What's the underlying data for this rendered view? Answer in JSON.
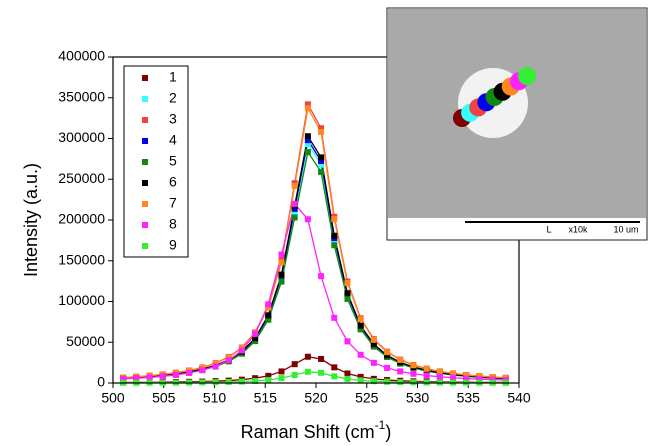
{
  "chart_data": {
    "type": "scatter",
    "x_label": {
      "text": "Raman Shift (cm",
      "superscript": "-1",
      "end": ")"
    },
    "y_label": "Intensity (a.u.)",
    "xlim": [
      500,
      540
    ],
    "xticks": [
      500,
      505,
      510,
      515,
      520,
      525,
      530,
      535,
      540
    ],
    "ylim": [
      0,
      400000
    ],
    "yticks": [
      0,
      50000,
      100000,
      150000,
      200000,
      250000,
      300000,
      350000,
      400000
    ],
    "legend": "upper left",
    "x": [
      501,
      502.3,
      503.6,
      504.9,
      506.2,
      507.5,
      508.8,
      510.1,
      511.4,
      512.7,
      514,
      515.3,
      516.6,
      517.9,
      519.2,
      520.5,
      521.8,
      523.1,
      524.4,
      525.7,
      527,
      528.3,
      529.6,
      530.9,
      532.2,
      533.5,
      534.8,
      536.1,
      537.4,
      538.7
    ],
    "series": [
      {
        "name": "1",
        "color": "#7f0000",
        "values": [
          600,
          700,
          800,
          1000,
          1200,
          1500,
          1800,
          2300,
          3000,
          4100,
          5900,
          8800,
          14200,
          23100,
          32200,
          29500,
          19200,
          11700,
          7500,
          5100,
          3600,
          2700,
          2100,
          1700,
          1300,
          1100,
          900,
          800,
          700,
          600
        ]
      },
      {
        "name": "2",
        "color": "#33ffff",
        "values": [
          5800,
          6600,
          7700,
          9100,
          10900,
          13200,
          16400,
          20900,
          27400,
          37300,
          53200,
          80300,
          128700,
          210200,
          293100,
          267900,
          174800,
          106700,
          68100,
          46100,
          33000,
          24600,
          19000,
          15100,
          12200,
          10100,
          8500,
          7300,
          6300,
          5500
        ]
      },
      {
        "name": "3",
        "color": "#ee4444",
        "values": [
          6700,
          7700,
          9000,
          10600,
          12700,
          15400,
          19200,
          24400,
          32000,
          43500,
          62100,
          93700,
          150200,
          245200,
          341900,
          312600,
          204000,
          124500,
          79400,
          53800,
          38500,
          28700,
          22200,
          17600,
          14300,
          11800,
          9900,
          8500,
          7300,
          6400
        ]
      },
      {
        "name": "4",
        "color": "#0000ee",
        "values": [
          5900,
          6700,
          7800,
          9200,
          11100,
          13500,
          16700,
          21300,
          27800,
          37900,
          54100,
          81600,
          130800,
          213700,
          298000,
          272400,
          177800,
          108500,
          69200,
          46900,
          33500,
          25000,
          19300,
          15300,
          12400,
          10300,
          8700,
          7400,
          6400,
          5600
        ]
      },
      {
        "name": "5",
        "color": "#118811",
        "values": [
          5600,
          6400,
          7500,
          8800,
          10500,
          12800,
          15900,
          20200,
          26500,
          36000,
          51400,
          77600,
          124400,
          203100,
          283300,
          259000,
          169000,
          103100,
          65800,
          44600,
          31900,
          23800,
          18400,
          14600,
          11800,
          9800,
          8200,
          7000,
          6100,
          5300
        ]
      },
      {
        "name": "6",
        "color": "#000000",
        "values": [
          6000,
          6900,
          8000,
          9400,
          11300,
          13700,
          17000,
          21600,
          28300,
          38500,
          55000,
          83000,
          133000,
          217200,
          302800,
          276800,
          180700,
          110200,
          70300,
          47600,
          34100,
          25400,
          19600,
          15600,
          12600,
          10500,
          8800,
          7500,
          6500,
          5600
        ]
      },
      {
        "name": "7",
        "color": "#ff8820",
        "values": [
          6600,
          7600,
          8900,
          10500,
          12500,
          15200,
          18900,
          24000,
          31500,
          42900,
          61200,
          92400,
          148000,
          241700,
          337000,
          308100,
          201100,
          122700,
          78300,
          53000,
          37900,
          28300,
          21800,
          17400,
          14100,
          11700,
          9800,
          8300,
          7200,
          6300
        ]
      },
      {
        "name": "8",
        "color": "#ff22ff",
        "values": [
          5000,
          5800,
          6800,
          8200,
          9900,
          12300,
          15700,
          20500,
          28000,
          39900,
          60200,
          96500,
          157600,
          219800,
          200900,
          131100,
          80000,
          51100,
          34600,
          24700,
          18500,
          14200,
          11300,
          9200,
          7600,
          6400,
          5400,
          4700,
          4100,
          3600
        ]
      },
      {
        "name": "9",
        "color": "#33ee33",
        "values": [
          300,
          300,
          400,
          400,
          500,
          600,
          800,
          1000,
          1300,
          1700,
          2500,
          3700,
          6000,
          9800,
          13700,
          12500,
          8200,
          5000,
          3200,
          2200,
          1500,
          1100,
          900,
          700,
          600,
          500,
          400,
          300,
          300,
          300
        ]
      }
    ]
  },
  "inset": {
    "labels": [
      "L",
      "x10k",
      "10 um"
    ]
  }
}
